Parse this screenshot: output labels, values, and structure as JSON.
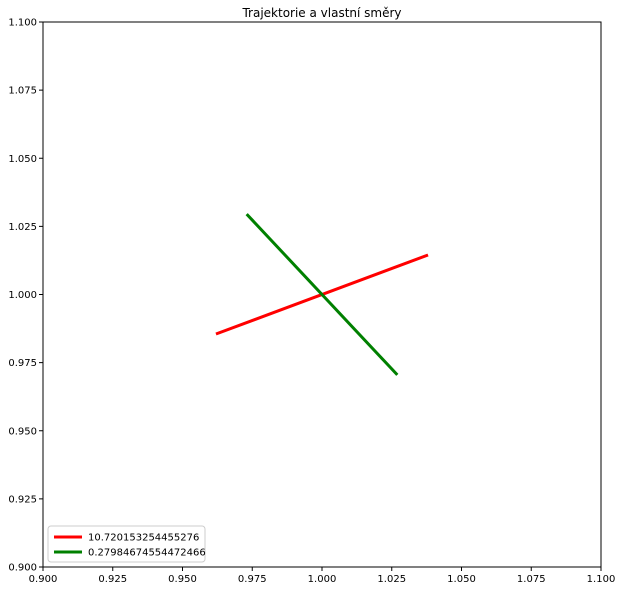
{
  "chart_data": {
    "type": "line",
    "subtype": "streamplot",
    "title": "Trajektorie a vlastní směry",
    "xlabel": "",
    "ylabel": "",
    "xlim": [
      0.9,
      1.1
    ],
    "ylim": [
      0.9,
      1.1
    ],
    "xticks": [
      0.9,
      0.925,
      0.95,
      0.975,
      1.0,
      1.025,
      1.05,
      1.075,
      1.1
    ],
    "xtick_labels": [
      "0.900",
      "0.925",
      "0.950",
      "0.975",
      "1.000",
      "1.025",
      "1.050",
      "1.075",
      "1.100"
    ],
    "yticks": [
      0.9,
      0.925,
      0.95,
      0.975,
      1.0,
      1.025,
      1.05,
      1.075,
      1.1
    ],
    "ytick_labels": [
      "0.900",
      "0.925",
      "0.950",
      "0.975",
      "1.000",
      "1.025",
      "1.050",
      "1.075",
      "1.100"
    ],
    "grid": false,
    "legend_position": "lower-left",
    "fixed_point": [
      1.0,
      1.0
    ],
    "stream_color": "#0000ff",
    "series": [
      {
        "name": "10.720153254455276",
        "color": "#ff0000",
        "x": [
          0.962,
          1.038
        ],
        "y": [
          0.9855,
          1.0145
        ]
      },
      {
        "name": "0.27984674554472466",
        "color": "#008000",
        "x": [
          0.973,
          1.027
        ],
        "y": [
          1.0295,
          0.9705
        ]
      }
    ]
  }
}
